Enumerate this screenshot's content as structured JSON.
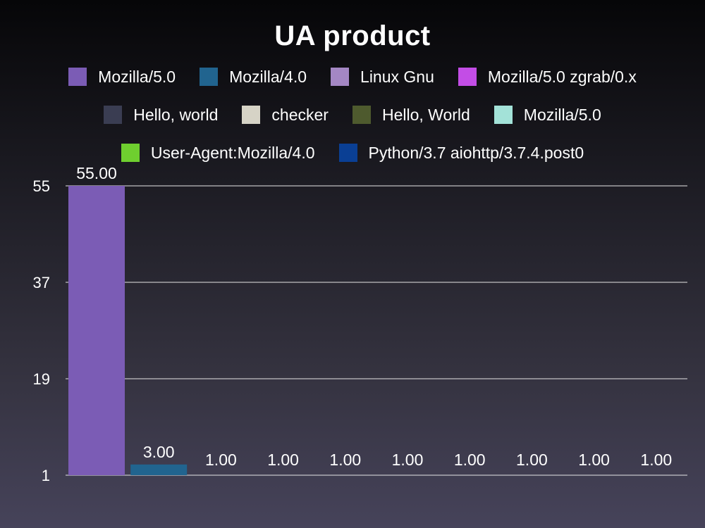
{
  "chart_data": {
    "type": "bar",
    "title": "UA product",
    "xlabel": "",
    "ylabel": "",
    "ylim": [
      1,
      55
    ],
    "yticks": [
      "1",
      "19",
      "37",
      "55"
    ],
    "grid": true,
    "legend_position": "top",
    "categories": [
      "Mozilla/5.0",
      "Mozilla/4.0",
      "Linux Gnu",
      "Mozilla/5.0 zgrab/0.x",
      "Hello, world",
      "checker",
      "Hello, World",
      "Mozilla/5.0",
      "User-Agent:Mozilla/4.0",
      "Python/3.7 aiohttp/3.7.4.post0"
    ],
    "values": [
      55,
      3,
      1,
      1,
      1,
      1,
      1,
      1,
      1,
      1
    ],
    "value_labels": [
      "55.00",
      "3.00",
      "1.00",
      "1.00",
      "1.00",
      "1.00",
      "1.00",
      "1.00",
      "1.00",
      "1.00"
    ],
    "colors": [
      "#7b5cb5",
      "#21648f",
      "#a487c4",
      "#c34de6",
      "#3a3d52",
      "#d6d3c6",
      "#4e5a2e",
      "#a3e2d8",
      "#6fcf2f",
      "#0a3f94"
    ]
  }
}
